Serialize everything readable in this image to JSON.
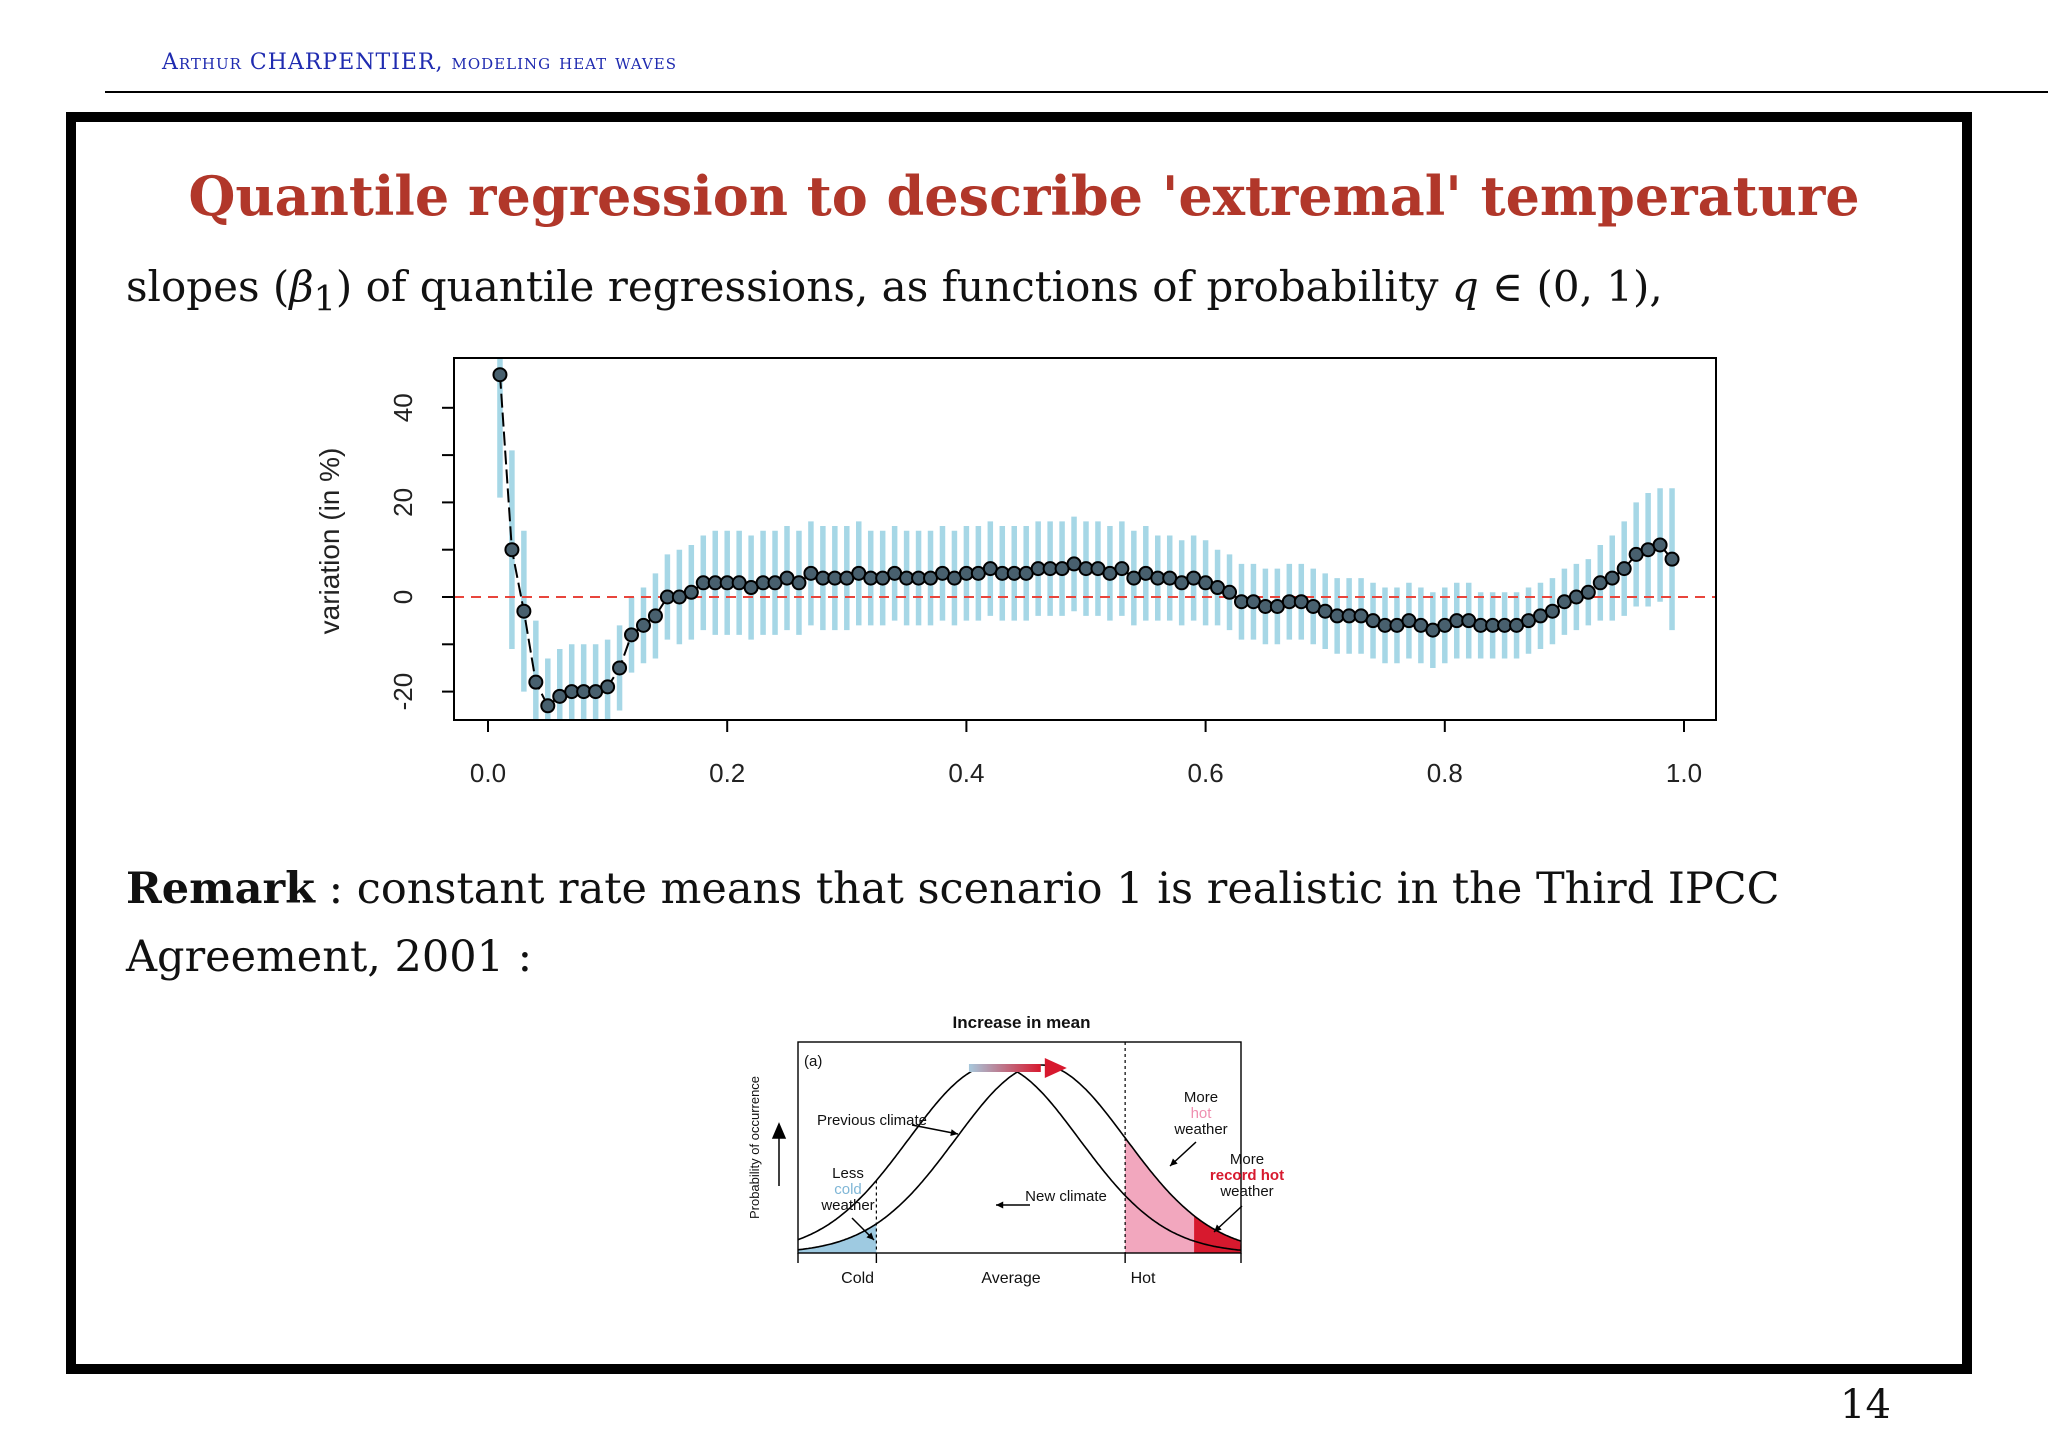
{
  "header": {
    "author": "Arthur CHARPENTIER, modeling heat waves"
  },
  "slide": {
    "title": "Quantile regression to describe 'extremal' temperature",
    "subtitle": {
      "prefix": "slopes (",
      "beta": "β",
      "beta_sub": "1",
      "middle": ") of quantile regressions, as functions of probability ",
      "q": "q",
      "suffix": " ∈ (0, 1),"
    },
    "remark": {
      "label": "Remark",
      "text": " : constant rate means that scenario 1 is realistic in the Third IPCC Agreement, 2001 :"
    },
    "page_number": "14"
  },
  "chart_data": [
    {
      "type": "scatter",
      "title": "",
      "xlabel": "",
      "ylabel": "variation (in %)",
      "xlim": [
        0,
        1
      ],
      "ylim": [
        -26,
        50
      ],
      "x_ticks": [
        0.0,
        0.2,
        0.4,
        0.6,
        0.8,
        1.0
      ],
      "x_tick_labels": [
        "0.0",
        "0.2",
        "0.4",
        "0.6",
        "0.8",
        "1.0"
      ],
      "y_ticks": [
        -20,
        0,
        20,
        40
      ],
      "y_tick_labels": [
        "-20",
        "0",
        "20",
        "40"
      ],
      "reference_line": {
        "y": 0,
        "style": "dashed",
        "color": "#e8453c"
      },
      "colors": {
        "points": "#48606e",
        "intervals": "#a6d7e6",
        "line": "#000000"
      },
      "grid": false,
      "x": [
        0.01,
        0.02,
        0.03,
        0.04,
        0.05,
        0.06,
        0.07,
        0.08,
        0.09,
        0.1,
        0.11,
        0.12,
        0.13,
        0.14,
        0.15,
        0.16,
        0.17,
        0.18,
        0.19,
        0.2,
        0.21,
        0.22,
        0.23,
        0.24,
        0.25,
        0.26,
        0.27,
        0.28,
        0.29,
        0.3,
        0.31,
        0.32,
        0.33,
        0.34,
        0.35,
        0.36,
        0.37,
        0.38,
        0.39,
        0.4,
        0.41,
        0.42,
        0.43,
        0.44,
        0.45,
        0.46,
        0.47,
        0.48,
        0.49,
        0.5,
        0.51,
        0.52,
        0.53,
        0.54,
        0.55,
        0.56,
        0.57,
        0.58,
        0.59,
        0.6,
        0.61,
        0.62,
        0.63,
        0.64,
        0.65,
        0.66,
        0.67,
        0.68,
        0.69,
        0.7,
        0.71,
        0.72,
        0.73,
        0.74,
        0.75,
        0.76,
        0.77,
        0.78,
        0.79,
        0.8,
        0.81,
        0.82,
        0.83,
        0.84,
        0.85,
        0.86,
        0.87,
        0.88,
        0.89,
        0.9,
        0.91,
        0.92,
        0.93,
        0.94,
        0.95,
        0.96,
        0.97,
        0.98,
        0.99
      ],
      "y": [
        47,
        10,
        -3,
        -18,
        -23,
        -21,
        -20,
        -20,
        -20,
        -19,
        -15,
        -8,
        -6,
        -4,
        0,
        0,
        1,
        3,
        3,
        3,
        3,
        2,
        3,
        3,
        4,
        3,
        5,
        4,
        4,
        4,
        5,
        4,
        4,
        5,
        4,
        4,
        4,
        5,
        4,
        5,
        5,
        6,
        5,
        5,
        5,
        6,
        6,
        6,
        7,
        6,
        6,
        5,
        6,
        4,
        5,
        4,
        4,
        3,
        4,
        3,
        2,
        1,
        -1,
        -1,
        -2,
        -2,
        -1,
        -1,
        -2,
        -3,
        -4,
        -4,
        -4,
        -5,
        -6,
        -6,
        -5,
        -6,
        -7,
        -6,
        -5,
        -5,
        -6,
        -6,
        -6,
        -6,
        -5,
        -4,
        -3,
        -1,
        0,
        1,
        3,
        4,
        6,
        9,
        10,
        11,
        8
      ],
      "ci_half_width": [
        26,
        21,
        17,
        13,
        10,
        10,
        10,
        10,
        10,
        10,
        9,
        8,
        8,
        9,
        9,
        10,
        10,
        10,
        11,
        11,
        11,
        11,
        11,
        11,
        11,
        11,
        11,
        11,
        11,
        11,
        11,
        10,
        10,
        10,
        10,
        10,
        10,
        10,
        10,
        10,
        10,
        10,
        10,
        10,
        10,
        10,
        10,
        10,
        10,
        10,
        10,
        10,
        10,
        10,
        10,
        9,
        9,
        9,
        9,
        9,
        8,
        8,
        8,
        8,
        8,
        8,
        8,
        8,
        8,
        8,
        8,
        8,
        8,
        8,
        8,
        8,
        8,
        8,
        8,
        8,
        8,
        8,
        7,
        7,
        7,
        7,
        7,
        7,
        7,
        7,
        7,
        7,
        8,
        9,
        10,
        11,
        12,
        12,
        15
      ]
    },
    {
      "type": "area",
      "title": "Increase in mean",
      "xlabel": "",
      "ylabel": "Probability of occurrence",
      "panel_label": "(a)",
      "x_tick_labels": [
        "Cold",
        "Average",
        "Hot"
      ],
      "series": [
        {
          "name": "Previous climate",
          "mean": 0,
          "sd": 1
        },
        {
          "name": "New climate",
          "mean": 0.55,
          "sd": 1
        }
      ],
      "annotations": {
        "previous_climate": "Previous climate",
        "new_climate": "New climate",
        "less_cold_prefix": "Less",
        "less_cold_highlight": "cold",
        "less_cold_suffix": "weather",
        "more_hot_prefix": "More",
        "more_hot_highlight": "hot",
        "more_hot_suffix": "weather",
        "more_record_prefix": "More",
        "more_record_highlight": "record hot",
        "more_record_suffix": "weather"
      },
      "colors": {
        "cold": "#9ecae1",
        "hot": "#f2a7be",
        "record_hot": "#d7192e",
        "arrow_start": "#a7c8dc",
        "arrow_end": "#d7192e"
      }
    }
  ]
}
